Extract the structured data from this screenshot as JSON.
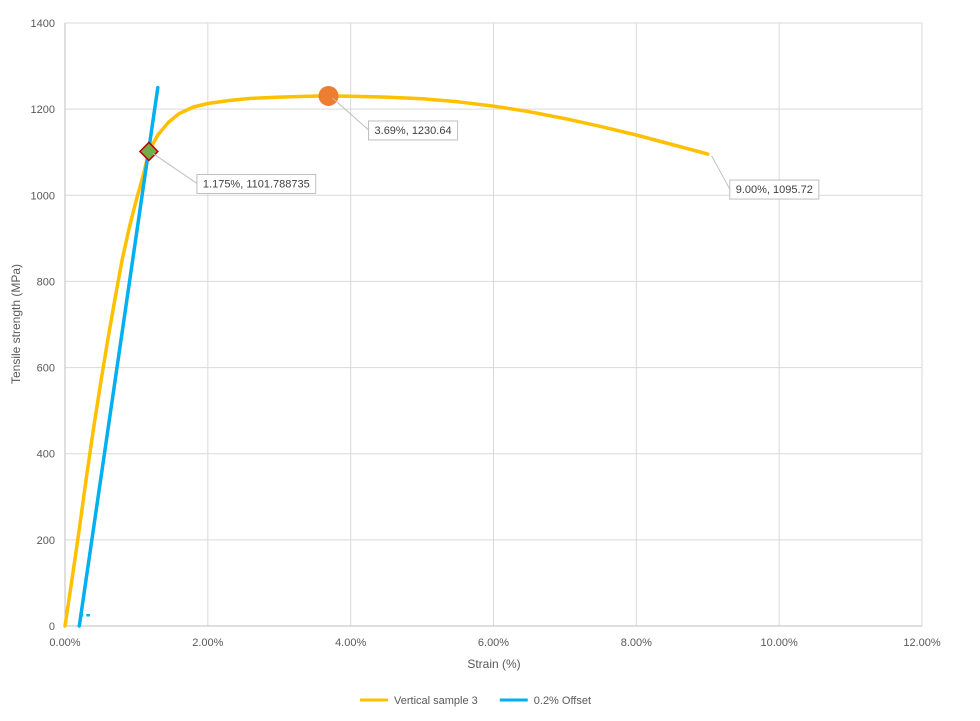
{
  "chart_data": {
    "type": "scatter",
    "title": "",
    "xlabel": "Strain (%)",
    "ylabel": "Tensile strength (MPa)",
    "xlim": [
      0,
      12
    ],
    "ylim": [
      0,
      1400
    ],
    "x_ticks": [
      0,
      2,
      4,
      6,
      8,
      10,
      12
    ],
    "x_tick_labels": [
      "0.00%",
      "2.00%",
      "4.00%",
      "6.00%",
      "8.00%",
      "10.00%",
      "12.00%"
    ],
    "y_ticks": [
      0,
      200,
      400,
      600,
      800,
      1000,
      1200,
      1400
    ],
    "y_tick_labels": [
      "0",
      "200",
      "400",
      "600",
      "800",
      "1000",
      "1200",
      "1400"
    ],
    "grid": true,
    "legend_position": "bottom",
    "series": [
      {
        "name": "Vertical sample 3",
        "color": "#FFC000",
        "x": [
          0.0,
          0.1,
          0.2,
          0.3,
          0.4,
          0.5,
          0.6,
          0.7,
          0.8,
          0.9,
          1.0,
          1.1,
          1.175,
          1.3,
          1.45,
          1.6,
          1.8,
          2.0,
          2.3,
          2.6,
          3.0,
          3.4,
          3.69,
          4.0,
          4.5,
          5.0,
          5.5,
          6.0,
          6.5,
          7.0,
          7.5,
          8.0,
          8.5,
          9.0
        ],
        "y": [
          0,
          110,
          225,
          345,
          460,
          565,
          665,
          760,
          850,
          925,
          990,
          1050,
          1101.79,
          1140,
          1170,
          1190,
          1205,
          1213,
          1220,
          1225,
          1228,
          1230,
          1230.64,
          1230,
          1228,
          1224,
          1217,
          1207,
          1194,
          1178,
          1160,
          1140,
          1118,
          1095.72
        ]
      },
      {
        "name": "0.2% Offset",
        "color": "#00B0F0",
        "x": [
          0.2,
          1.3
        ],
        "y": [
          0,
          1250
        ]
      }
    ],
    "markers": [
      {
        "name": "yield-point",
        "x": 1.175,
        "y": 1101.79,
        "shape": "diamond",
        "fill": "#70AD47",
        "stroke": "#C00000"
      },
      {
        "name": "ultimate-strength",
        "x": 3.69,
        "y": 1230.64,
        "shape": "circle",
        "fill": "#ED7D31"
      }
    ],
    "annotations": [
      {
        "text": "1.175%, 1101.788735",
        "x": 1.175,
        "y": 1101.79
      },
      {
        "text": "3.69%, 1230.64",
        "x": 3.69,
        "y": 1230.64
      },
      {
        "text": "9.00%, 1095.72",
        "x": 9.0,
        "y": 1095.72
      }
    ]
  }
}
